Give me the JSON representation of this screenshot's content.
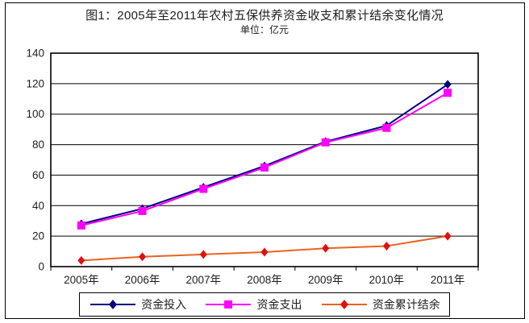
{
  "figure": {
    "title": "图1：2005年至2011年农村五保供养资金收支和累计结余变化情况",
    "subtitle": "单位：亿元"
  },
  "colors": {
    "text": "#1e1e1e",
    "grid": "#000000",
    "plot_border": "#000000",
    "axis": "#000000",
    "background": "#ffffff"
  },
  "chart_data": {
    "type": "line",
    "title": "图1：2005年至2011年农村五保供养资金收支和累计结余变化情况",
    "unit_label": "单位：亿元",
    "categories": [
      "2005年",
      "2006年",
      "2007年",
      "2008年",
      "2009年",
      "2010年",
      "2011年"
    ],
    "series": [
      {
        "name": "资金投入",
        "values": [
          28,
          38,
          52,
          66,
          82,
          92.5,
          119.5
        ],
        "color": "#000080",
        "marker_color": "#000080",
        "marker": "diamond"
      },
      {
        "name": "资金支出",
        "values": [
          27,
          36.5,
          51,
          65,
          81.5,
          91,
          114
        ],
        "color": "#FF00FF",
        "marker_color": "#FF00FF",
        "marker": "square"
      },
      {
        "name": "资金累计结余",
        "values": [
          4,
          6.5,
          8,
          9.5,
          12,
          13.5,
          20
        ],
        "color": "#E8641E",
        "marker_color": "#E01010",
        "marker": "diamond"
      }
    ],
    "ylim": [
      0,
      140
    ],
    "yticks": [
      0,
      20,
      40,
      60,
      80,
      100,
      120,
      140
    ],
    "grid": true,
    "legend_position": "bottom"
  }
}
